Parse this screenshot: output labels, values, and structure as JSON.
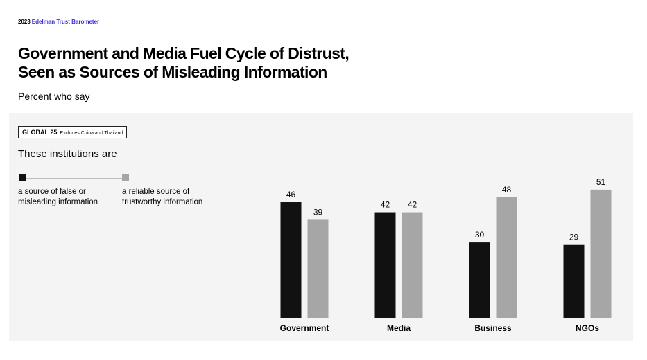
{
  "header": {
    "year": "2023",
    "brand": "Edelman Trust Barometer"
  },
  "chart_data": {
    "type": "bar",
    "title_lines": [
      "Government and Media Fuel Cycle of Distrust,",
      "Seen as Sources of Misleading Information"
    ],
    "subtitle": "Percent who say",
    "badge": {
      "label": "GLOBAL 25",
      "note": "Excludes China and Thailand"
    },
    "legend_title": "These institutions are",
    "categories": [
      "Government",
      "Media",
      "Business",
      "NGOs"
    ],
    "series": [
      {
        "name": "a source of false or misleading information",
        "color": "#111111",
        "values": [
          46,
          42,
          30,
          29
        ]
      },
      {
        "name": "a reliable source of trustworthy information",
        "color": "#a6a6a6",
        "values": [
          39,
          42,
          48,
          51
        ]
      }
    ]
  }
}
